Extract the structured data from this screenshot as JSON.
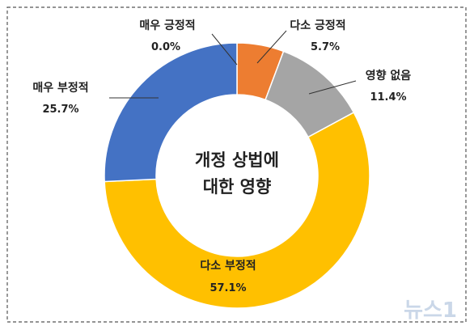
{
  "chart_data": {
    "type": "pie",
    "title": "",
    "center_label": [
      "개정 상법에",
      "대한 영향"
    ],
    "categories": [
      "매우 긍정적",
      "다소 긍정적",
      "영향 없음",
      "다소 부정적",
      "매우 부정적"
    ],
    "values": [
      0.0,
      5.7,
      11.4,
      57.1,
      25.7
    ],
    "value_labels": [
      "0.0%",
      "5.7%",
      "11.4%",
      "57.1%",
      "25.7%"
    ],
    "colors": [
      "#5B9BD5",
      "#ED7D31",
      "#A5A5A5",
      "#FFC000",
      "#4472C4"
    ],
    "style": "donut",
    "legend": "none"
  },
  "watermark": {
    "text": "뉴스1",
    "color": "#9fb6d6"
  },
  "colors": {
    "frame_border": "#555555",
    "leader_line": "#333333",
    "slice_border": "#ffffff"
  }
}
